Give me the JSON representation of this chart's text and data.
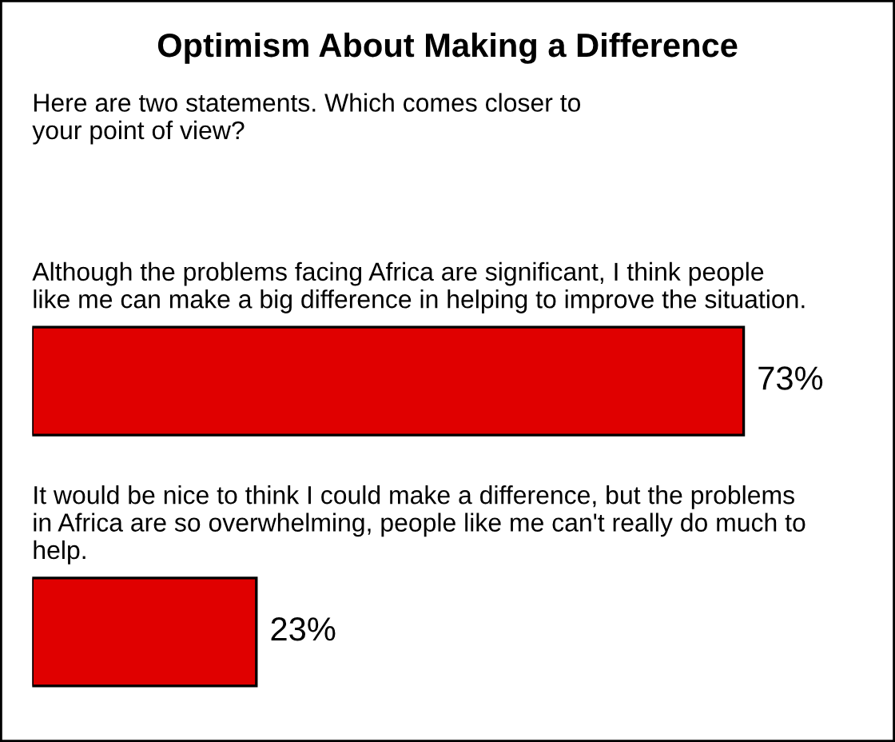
{
  "chart_data": {
    "type": "bar",
    "orientation": "horizontal",
    "title": "Optimism About Making a Difference",
    "subtitle": "Here are two statements. Which comes closer to your point of view?",
    "categories": [
      "Although the problems facing Africa are significant, I think people like me can make a big difference in helping to improve the situation.",
      "It would be nice to think I could make a difference, but the problems in Africa are so overwhelming, people like me can't really do much to help."
    ],
    "values": [
      73,
      23
    ],
    "color": "#e00000",
    "value_labels": [
      "73%",
      "23%"
    ]
  }
}
